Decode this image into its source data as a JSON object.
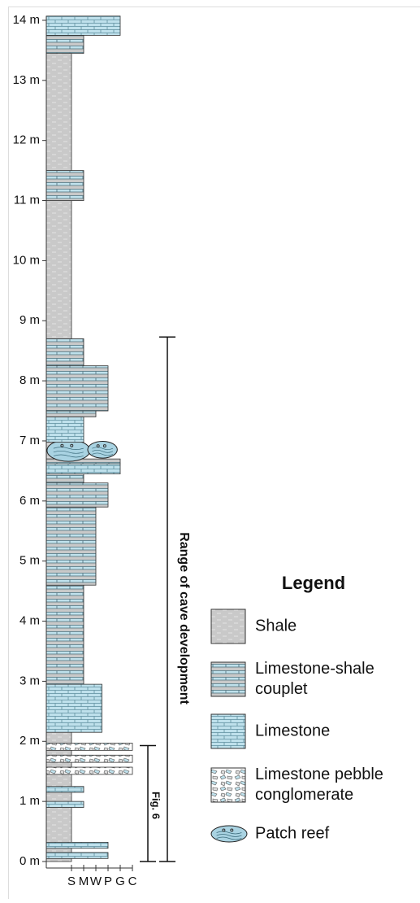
{
  "axis": {
    "ticks": [
      {
        "value": 0,
        "label": "0 m"
      },
      {
        "value": 1,
        "label": "1 m"
      },
      {
        "value": 2,
        "label": "2 m"
      },
      {
        "value": 3,
        "label": "3 m"
      },
      {
        "value": 4,
        "label": "4 m"
      },
      {
        "value": 5,
        "label": "5 m"
      },
      {
        "value": 6,
        "label": "6 m"
      },
      {
        "value": 7,
        "label": "7 m"
      },
      {
        "value": 8,
        "label": "8 m"
      },
      {
        "value": 9,
        "label": "9 m"
      },
      {
        "value": 10,
        "label": "10 m"
      },
      {
        "value": 11,
        "label": "11 m"
      },
      {
        "value": 12,
        "label": "12 m"
      },
      {
        "value": 13,
        "label": "13 m"
      },
      {
        "value": 14,
        "label": "14 m"
      }
    ],
    "grain_labels": [
      "S",
      "M",
      "W",
      "P",
      "G",
      "C"
    ]
  },
  "beds": [
    {
      "base": 0,
      "top": 13.75,
      "lith": 0,
      "grain": 0
    },
    {
      "base": 0.05,
      "top": 0.15,
      "lith": 2,
      "grain": 3
    },
    {
      "base": 0.22,
      "top": 0.32,
      "lith": 2,
      "grain": 3
    },
    {
      "base": 0.9,
      "top": 1.0,
      "lith": 2,
      "grain": 1
    },
    {
      "base": 1.15,
      "top": 1.25,
      "lith": 2,
      "grain": 1
    },
    {
      "base": 1.45,
      "top": 1.57,
      "lith": 3,
      "grain": 5
    },
    {
      "base": 1.65,
      "top": 1.77,
      "lith": 3,
      "grain": 5
    },
    {
      "base": 1.85,
      "top": 1.97,
      "lith": 3,
      "grain": 5
    },
    {
      "base": 2.15,
      "top": 2.95,
      "lith": 2,
      "grain": 2.5
    },
    {
      "base": 2.95,
      "top": 4.6,
      "lith": 1,
      "grain": 1
    },
    {
      "base": 4.6,
      "top": 5.9,
      "lith": 1,
      "grain": 2
    },
    {
      "base": 5.9,
      "top": 6.3,
      "lith": 1,
      "grain": 3
    },
    {
      "base": 6.3,
      "top": 6.45,
      "lith": 1,
      "grain": 1
    },
    {
      "base": 6.45,
      "top": 6.62,
      "lith": 2,
      "grain": 4
    },
    {
      "base": 6.62,
      "top": 6.7,
      "lith": 1,
      "grain": 4
    },
    {
      "base": 6.7,
      "top": 6.98,
      "lith": 4,
      "grain": 4
    },
    {
      "base": 6.98,
      "top": 7.4,
      "lith": 2,
      "grain": 1
    },
    {
      "base": 7.4,
      "top": 7.5,
      "lith": 1,
      "grain": 2
    },
    {
      "base": 7.5,
      "top": 8.25,
      "lith": 1,
      "grain": 3
    },
    {
      "base": 8.25,
      "top": 8.7,
      "lith": 1,
      "grain": 1
    },
    {
      "base": 11.0,
      "top": 11.5,
      "lith": 1,
      "grain": 1
    },
    {
      "base": 13.45,
      "top": 13.75,
      "lith": 1,
      "grain": 1
    },
    {
      "base": 13.75,
      "top": 14.07,
      "lith": 2,
      "grain": 4
    }
  ],
  "ranges": [
    {
      "label": "Range of cave development",
      "base": 0,
      "top": 8.73
    },
    {
      "label": "Fig. 6",
      "base": 0,
      "top": 1.93
    }
  ],
  "legend": {
    "title": "Legend",
    "entries": [
      {
        "label": [
          "Shale"
        ]
      },
      {
        "label": [
          "Limestone-shale",
          "couplet"
        ]
      },
      {
        "label": [
          "Limestone"
        ]
      },
      {
        "label": [
          "Limestone pebble",
          "conglomerate"
        ]
      },
      {
        "label": [
          "Patch reef"
        ]
      }
    ]
  }
}
